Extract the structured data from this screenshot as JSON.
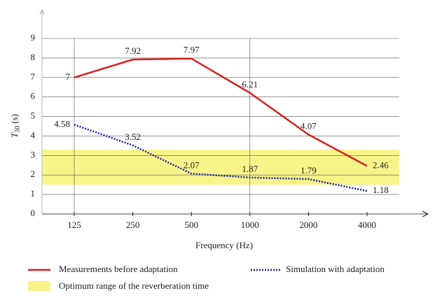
{
  "chart_data": {
    "type": "line",
    "xlabel": "Frequency (Hz)",
    "ylabel": {
      "symbol": "T",
      "subscript": "30",
      "unit": "(s)"
    },
    "categories": [
      "125",
      "250",
      "500",
      "1000",
      "2000",
      "4000"
    ],
    "series": [
      {
        "name": "Measurements before adaptation",
        "color": "#d62020",
        "dash": "solid",
        "values": [
          7,
          7.92,
          7.97,
          6.21,
          4.07,
          2.46
        ]
      },
      {
        "name": "Simulation with adaptation",
        "color": "#1a1a9c",
        "dash": "dotted",
        "values": [
          4.58,
          3.52,
          2.07,
          1.87,
          1.79,
          1.18
        ]
      }
    ],
    "band": {
      "name": "Optimum range of the reverberation time",
      "color": "#f8f48a",
      "range": [
        1.5,
        3.3
      ]
    },
    "ylim": [
      0,
      9
    ],
    "yticks": [
      0,
      1,
      2,
      3,
      4,
      5,
      6,
      7,
      8,
      9
    ],
    "grid": true
  }
}
